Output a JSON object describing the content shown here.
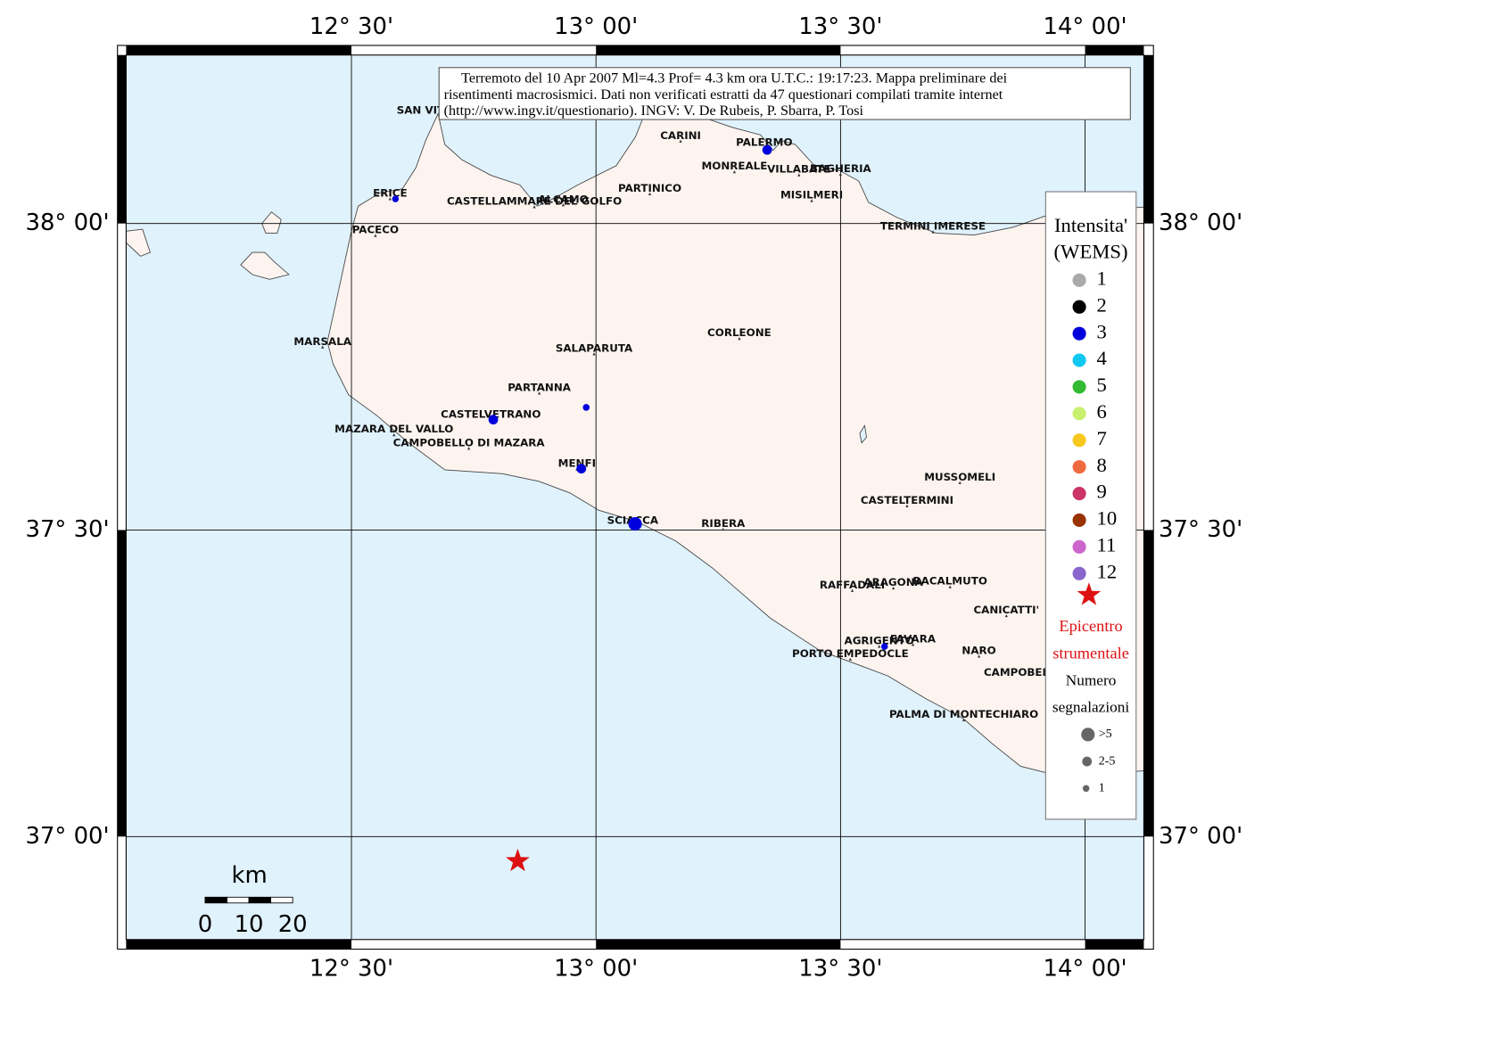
{
  "map": {
    "caption": [
      "Terremoto del 10 Apr 2007 Ml=4.3 Prof= 4.3 km ora U.T.C.: 19:17:23.  Mappa preliminare dei",
      "risentimenti macrosismici.   Dati non verificati estratti da 47 questionari compilati tramite internet",
      "(http://www.ingv.it/questionario).   INGV: V.  De Rubeis, P.  Sbarra, P.  Tosi"
    ],
    "lonticks": [
      {
        "value": 12.5,
        "label": "12° 30'"
      },
      {
        "value": 13,
        "label": "13° 00'"
      },
      {
        "value": 13.5,
        "label": "13° 30'"
      },
      {
        "value": 14,
        "label": "14° 00'"
      }
    ],
    "latticks": [
      {
        "value": 38,
        "label": "38° 00'"
      },
      {
        "value": 37.5,
        "label": "37° 30'"
      },
      {
        "value": 37,
        "label": "37° 00'"
      }
    ],
    "places": [
      {
        "name": "SAN VITO LO CAPO",
        "lon": 12.707,
        "lat": 38.184
      },
      {
        "name": "CARINI",
        "lon": 13.173,
        "lat": 38.143
      },
      {
        "name": "PALERMO",
        "lon": 13.344,
        "lat": 38.132
      },
      {
        "name": "MONREALE",
        "lon": 13.283,
        "lat": 38.093
      },
      {
        "name": "VILLABATE",
        "lon": 13.415,
        "lat": 38.088
      },
      {
        "name": "BAGHERIA",
        "lon": 13.5,
        "lat": 38.089
      },
      {
        "name": "MISILMERI",
        "lon": 13.441,
        "lat": 38.046
      },
      {
        "name": "PARTINICO",
        "lon": 13.11,
        "lat": 38.057
      },
      {
        "name": "ALCAMO",
        "lon": 12.933,
        "lat": 38.039
      },
      {
        "name": "CASTELLAMMARE DEL GOLFO",
        "lon": 12.874,
        "lat": 38.036
      },
      {
        "name": "ERICE",
        "lon": 12.579,
        "lat": 38.049
      },
      {
        "name": "PACECO",
        "lon": 12.549,
        "lat": 37.989
      },
      {
        "name": "TERMINI IMERESE",
        "lon": 13.689,
        "lat": 37.995
      },
      {
        "name": "MARSALA",
        "lon": 12.441,
        "lat": 37.807
      },
      {
        "name": "SALAPARUTA",
        "lon": 12.996,
        "lat": 37.796
      },
      {
        "name": "CORLEONE",
        "lon": 13.293,
        "lat": 37.821
      },
      {
        "name": "PARTANNA",
        "lon": 12.884,
        "lat": 37.732
      },
      {
        "name": "CASTELVETRANO",
        "lon": 12.785,
        "lat": 37.688
      },
      {
        "name": "MAZARA DEL VALLO",
        "lon": 12.587,
        "lat": 37.664
      },
      {
        "name": "CAMPOBELLO DI MAZARA",
        "lon": 12.74,
        "lat": 37.642
      },
      {
        "name": "MENFI",
        "lon": 12.961,
        "lat": 37.608
      },
      {
        "name": "SCIACCA",
        "lon": 13.075,
        "lat": 37.515
      },
      {
        "name": "RIBERA",
        "lon": 13.26,
        "lat": 37.51
      },
      {
        "name": "MUSSOMELI",
        "lon": 13.744,
        "lat": 37.586
      },
      {
        "name": "CASTELTERMINI",
        "lon": 13.636,
        "lat": 37.548
      },
      {
        "name": "RAFFADALI",
        "lon": 13.524,
        "lat": 37.41
      },
      {
        "name": "ARAGONA",
        "lon": 13.608,
        "lat": 37.414
      },
      {
        "name": "RACALMUTO",
        "lon": 13.724,
        "lat": 37.416
      },
      {
        "name": "CANICATTI'",
        "lon": 13.839,
        "lat": 37.369
      },
      {
        "name": "AGRIGENTO",
        "lon": 13.579,
        "lat": 37.319
      },
      {
        "name": "FAVARA",
        "lon": 13.648,
        "lat": 37.322
      },
      {
        "name": "PORTO EMPEDOCLE",
        "lon": 13.52,
        "lat": 37.298
      },
      {
        "name": "NARO",
        "lon": 13.783,
        "lat": 37.303
      },
      {
        "name": "CAMPOBELLO DI LICATA",
        "lon": 13.937,
        "lat": 37.267
      },
      {
        "name": "PALMA DI MONTECHIARO",
        "lon": 13.752,
        "lat": 37.199
      }
    ],
    "points": [
      {
        "lon": 13.35,
        "lat": 38.12,
        "intensity": 3,
        "count": "2-5"
      },
      {
        "lon": 12.59,
        "lat": 38.04,
        "intensity": 3,
        "count": "1"
      },
      {
        "lon": 12.98,
        "lat": 37.7,
        "intensity": 3,
        "count": "1"
      },
      {
        "lon": 12.79,
        "lat": 37.68,
        "intensity": 3,
        "count": "2-5"
      },
      {
        "lon": 12.97,
        "lat": 37.6,
        "intensity": 3,
        "count": "2-5"
      },
      {
        "lon": 13.08,
        "lat": 37.51,
        "intensity": 3,
        "count": ">5"
      },
      {
        "lon": 13.59,
        "lat": 37.31,
        "intensity": 3,
        "count": "1"
      }
    ],
    "epicenter": {
      "lon": 12.84,
      "lat": 36.96,
      "color": "#dd1111"
    },
    "legend": {
      "title": [
        "Intensita'",
        "(WEMS)"
      ],
      "intensities": [
        {
          "label": 1,
          "color": "#aaaaaa"
        },
        {
          "label": 2,
          "color": "#000000"
        },
        {
          "label": 3,
          "color": "#0000dd"
        },
        {
          "label": 4,
          "color": "#11c8f0"
        },
        {
          "label": 5,
          "color": "#33bb33"
        },
        {
          "label": 6,
          "color": "#c8f070"
        },
        {
          "label": 7,
          "color": "#f7c81e"
        },
        {
          "label": 8,
          "color": "#f06a40"
        },
        {
          "label": 9,
          "color": "#cc3366"
        },
        {
          "label": 10,
          "color": "#993300"
        },
        {
          "label": 11,
          "color": "#cc66cc"
        },
        {
          "label": 12,
          "color": "#8866cc"
        }
      ],
      "epicenter_label": [
        "Epicentro",
        "strumentale"
      ],
      "count_title": [
        "Numero",
        "segnalazioni"
      ],
      "count_classes": [
        ">5",
        "2-5",
        "1"
      ]
    },
    "scale_bar": {
      "unit": "km",
      "ticks": [
        0,
        10,
        20
      ]
    }
  }
}
